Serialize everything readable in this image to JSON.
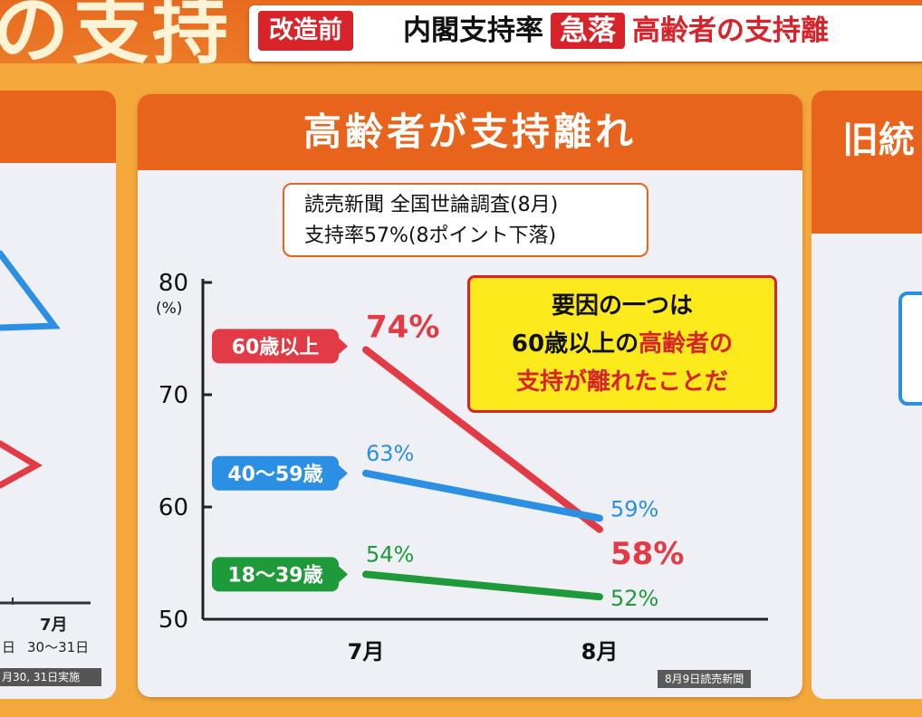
{
  "header": {
    "big_title": "の支持",
    "tag": "改造前",
    "headline_a": "内閣支持率",
    "headline_badge": "急落",
    "headline_b": "高齢者の支持離"
  },
  "side_left": {
    "tick": "7月",
    "dates": "30～31日",
    "dates_prefix": "日",
    "footer": "月30, 31日実施"
  },
  "side_right": {
    "header": "旧統"
  },
  "panel": {
    "title": "高齢者が支持離れ",
    "source_line1": "読売新聞  全国世論調査(8月)",
    "source_line2": "支持率57%(8ポイント下落)",
    "callout_line1": "要因の一つは",
    "callout_line2_a": "60歳以上の",
    "callout_line2_b": "高齢者の",
    "callout_line3_a": "支持",
    "callout_line3_b": "が離れたことだ",
    "credit": "8月9日読売新聞"
  },
  "chart_data": {
    "type": "line",
    "categories": [
      "7月",
      "8月"
    ],
    "ylabel": "(%)",
    "ylim": [
      50,
      80
    ],
    "yticks": [
      "50",
      "60",
      "70",
      "80"
    ],
    "series": [
      {
        "name": "60歳以上",
        "values": [
          74,
          58
        ],
        "labels": [
          "74%",
          "58%"
        ],
        "color": "#e23b45"
      },
      {
        "name": "40～59歳",
        "values": [
          63,
          59
        ],
        "labels": [
          "63%",
          "59%"
        ],
        "color": "#2b8fe3"
      },
      {
        "name": "18～39歳",
        "values": [
          54,
          52
        ],
        "labels": [
          "54%",
          "52%"
        ],
        "color": "#1f9a3a"
      }
    ]
  }
}
